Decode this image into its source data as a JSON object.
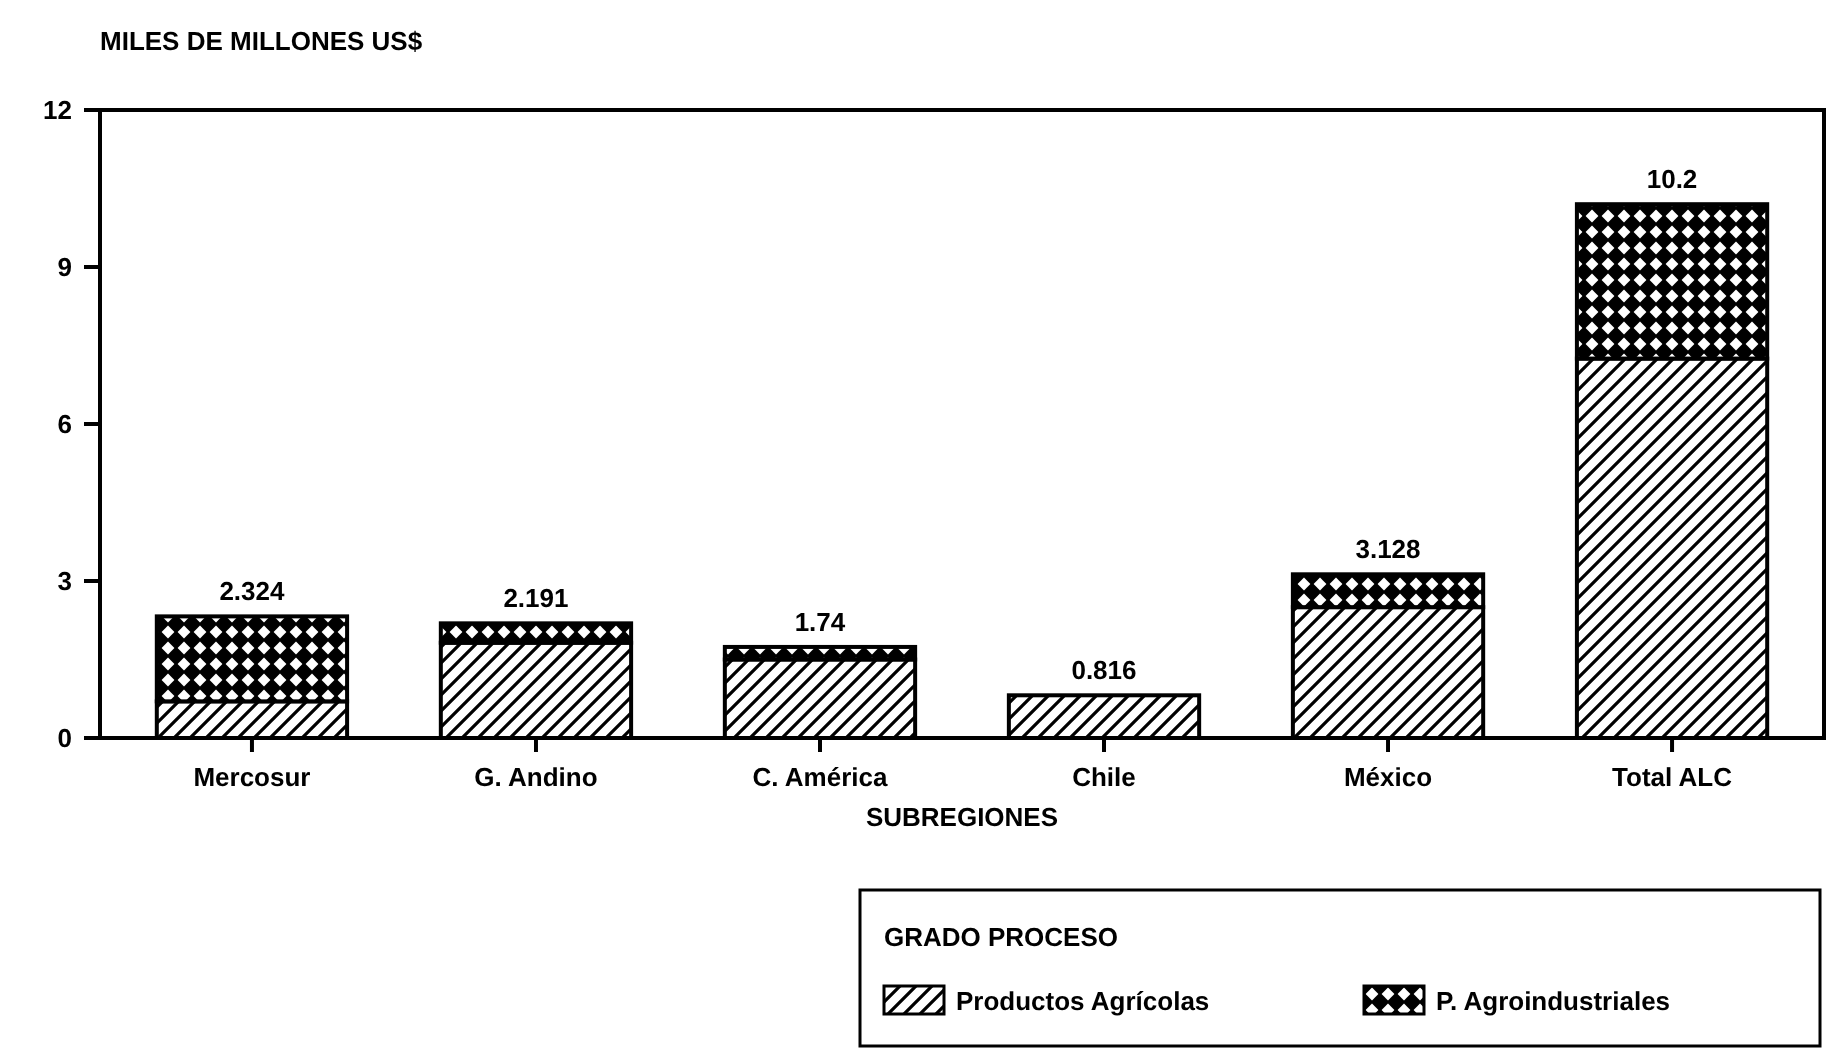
{
  "chart_data": {
    "type": "bar",
    "ylabel": "MILES DE MILLONES US$",
    "xlabel": "SUBREGIONES",
    "legend_title": "GRADO PROCESO",
    "categories": [
      "Mercosur",
      "G. Andino",
      "C. América",
      "Chile",
      "México",
      "Total ALC"
    ],
    "series": [
      {
        "name": "Productos Agrícolas",
        "color": "#000000",
        "values": [
          0.7,
          1.82,
          1.5,
          0.816,
          2.5,
          7.25
        ]
      },
      {
        "name": "P. Agroindustriales",
        "color": "#000000",
        "values": [
          1.624,
          0.371,
          0.24,
          null,
          0.628,
          2.95
        ]
      }
    ],
    "stacked": true,
    "totals": [
      "2.324",
      "2.191",
      "1.74",
      "0.816",
      "3.128",
      "10.2"
    ],
    "ylim": [
      0,
      12
    ],
    "yticks": [
      0,
      3,
      6,
      9,
      12
    ],
    "legend": "bottom right"
  }
}
